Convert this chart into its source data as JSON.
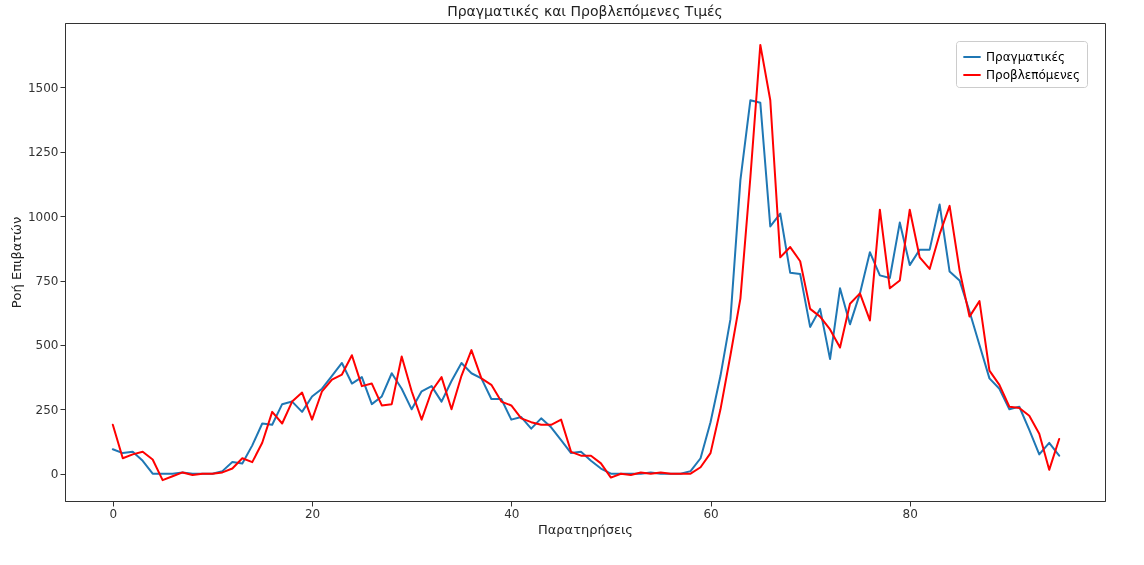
{
  "chart_data": {
    "type": "line",
    "title": "Πραγματικές και Προβλεπόμενες Τιμές",
    "xlabel": "Παρατηρήσεις",
    "ylabel": "Ροή Επιβατών",
    "x": [
      0,
      1,
      2,
      3,
      4,
      5,
      6,
      7,
      8,
      9,
      10,
      11,
      12,
      13,
      14,
      15,
      16,
      17,
      18,
      19,
      20,
      21,
      22,
      23,
      24,
      25,
      26,
      27,
      28,
      29,
      30,
      31,
      32,
      33,
      34,
      35,
      36,
      37,
      38,
      39,
      40,
      41,
      42,
      43,
      44,
      45,
      46,
      47,
      48,
      49,
      50,
      51,
      52,
      53,
      54,
      55,
      56,
      57,
      58,
      59,
      60,
      61,
      62,
      63,
      64,
      65,
      66,
      67,
      68,
      69,
      70,
      71,
      72,
      73,
      74,
      75,
      76,
      77,
      78,
      79,
      80,
      81,
      82,
      83,
      84,
      85,
      86,
      87,
      88,
      89,
      90,
      91,
      92,
      93,
      94,
      95
    ],
    "series": [
      {
        "name": "Πραγματικές",
        "color": "#1f77b4",
        "values": [
          95,
          80,
          85,
          50,
          0,
          0,
          0,
          5,
          0,
          0,
          0,
          10,
          45,
          40,
          110,
          195,
          190,
          270,
          280,
          240,
          300,
          330,
          380,
          430,
          350,
          375,
          270,
          300,
          390,
          330,
          250,
          320,
          340,
          280,
          360,
          430,
          390,
          370,
          290,
          290,
          210,
          220,
          175,
          215,
          180,
          130,
          80,
          85,
          50,
          20,
          0,
          0,
          0,
          0,
          5,
          0,
          0,
          0,
          10,
          60,
          200,
          380,
          600,
          1140,
          1450,
          1440,
          960,
          1010,
          780,
          775,
          570,
          640,
          445,
          720,
          580,
          700,
          860,
          770,
          760,
          975,
          810,
          870,
          870,
          1045,
          785,
          750,
          630,
          500,
          370,
          330,
          250,
          260,
          170,
          75,
          120,
          70
        ]
      },
      {
        "name": "Προβλεπόμενες",
        "color": "#ff0000",
        "values": [
          190,
          60,
          75,
          85,
          55,
          -25,
          -10,
          5,
          -5,
          0,
          0,
          5,
          20,
          60,
          45,
          120,
          240,
          195,
          280,
          315,
          210,
          320,
          365,
          385,
          460,
          340,
          350,
          265,
          270,
          455,
          320,
          210,
          320,
          375,
          250,
          380,
          480,
          370,
          345,
          280,
          265,
          215,
          200,
          190,
          190,
          210,
          85,
          70,
          70,
          40,
          -15,
          0,
          -5,
          5,
          0,
          5,
          0,
          0,
          0,
          25,
          80,
          250,
          460,
          680,
          1150,
          1665,
          1450,
          840,
          880,
          825,
          640,
          610,
          560,
          490,
          660,
          700,
          595,
          1025,
          720,
          750,
          1025,
          840,
          795,
          930,
          1040,
          790,
          610,
          670,
          400,
          345,
          260,
          255,
          225,
          155,
          15,
          135
        ]
      }
    ],
    "xlim": [
      -4.8,
      99.6
    ],
    "ylim": [
      -106,
      1750
    ],
    "xticks": [
      0,
      20,
      40,
      60,
      80
    ],
    "yticks": [
      0,
      250,
      500,
      750,
      1000,
      1250,
      1500
    ],
    "grid": false,
    "legend": "top right",
    "marker": "none",
    "line_style": "solid"
  }
}
